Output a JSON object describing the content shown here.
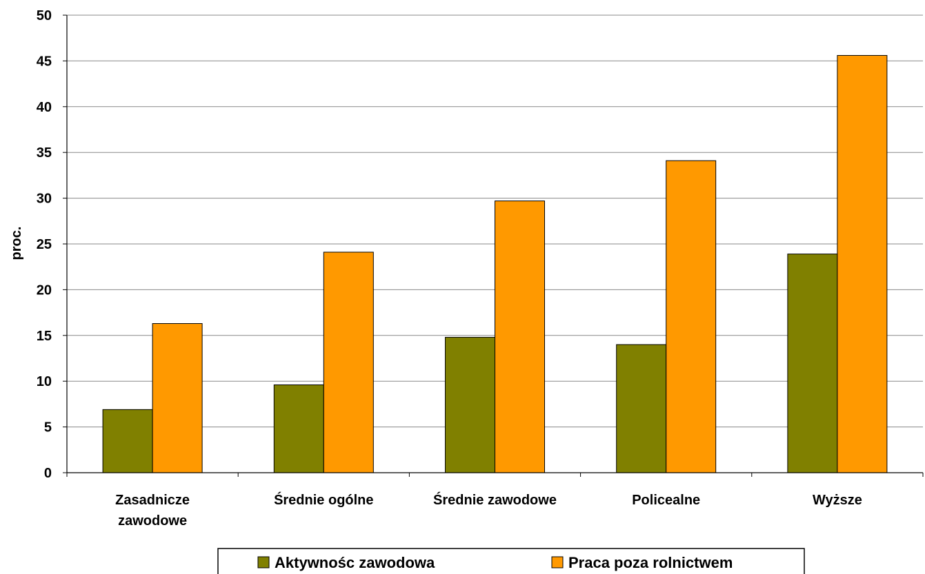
{
  "chart_data": {
    "type": "bar",
    "title": "",
    "xlabel": "",
    "ylabel": "proc.",
    "ylim": [
      0,
      50
    ],
    "yticks": [
      0,
      5,
      10,
      15,
      20,
      25,
      30,
      35,
      40,
      45,
      50
    ],
    "grid": true,
    "legend_position": "bottom",
    "categories": [
      [
        "Zasadnicze",
        "zawodowe"
      ],
      [
        "Średnie ogólne"
      ],
      [
        "Średnie zawodowe"
      ],
      [
        "Policealne"
      ],
      [
        "Wyższe"
      ]
    ],
    "series": [
      {
        "name": "Aktywnośc zawodowa",
        "color": "#808000",
        "values": [
          6.9,
          9.6,
          14.8,
          14.0,
          23.9
        ]
      },
      {
        "name": "Praca poza rolnictwem",
        "color": "#FF9900",
        "values": [
          16.3,
          24.1,
          29.7,
          34.1,
          45.6
        ]
      }
    ]
  }
}
